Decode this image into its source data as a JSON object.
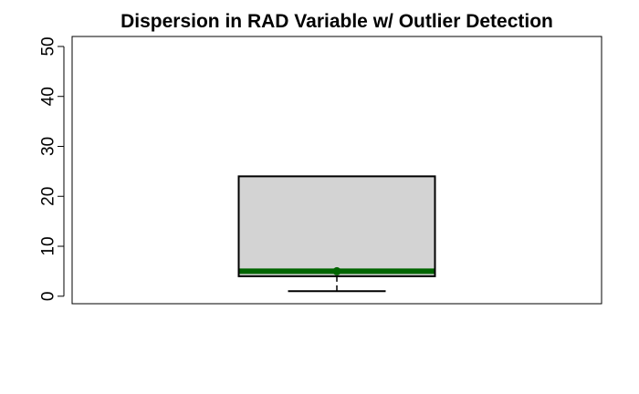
{
  "chart_data": {
    "type": "boxplot",
    "title": "Dispersion in RAD Variable w/ Outlier Detection",
    "xlabel": "",
    "ylabel": "",
    "ylim": [
      -1.5,
      52
    ],
    "yticks": [
      0,
      10,
      20,
      30,
      40,
      50
    ],
    "grid": false,
    "box": {
      "min": 1,
      "q1": 4,
      "median": 5,
      "mean": 5,
      "q3": 24,
      "max": 24
    },
    "colors": {
      "box_fill": "#d3d3d3",
      "median_line": "#006400",
      "mean_point": "#006400",
      "outline": "#000000"
    }
  }
}
